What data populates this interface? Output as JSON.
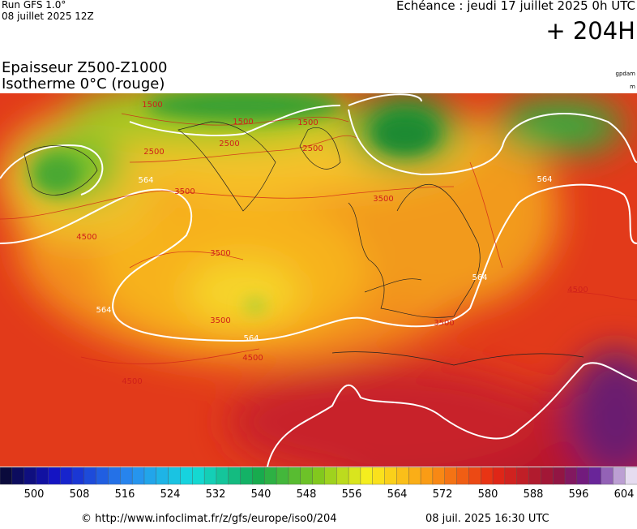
{
  "header": {
    "run": "Run GFS 1.0°",
    "date": "08 juillet 2025 12Z",
    "echeance": "Echéance : jeudi 17 juillet 2025 0h UTC",
    "horizon": "+ 204H"
  },
  "title": {
    "line1": "Epaisseur Z500-Z1000",
    "line2": "Isotherme 0°C (rouge)"
  },
  "units": {
    "gpdam": "gpdam",
    "m": "m"
  },
  "map": {
    "contour_labels": [
      "564",
      "564",
      "564",
      "564",
      "564",
      "1500",
      "1500",
      "1500",
      "2500",
      "2500",
      "2500",
      "3500",
      "3500",
      "3500",
      "3500",
      "3500",
      "4500",
      "4500",
      "4500",
      "4500"
    ]
  },
  "colorbar": {
    "labels": [
      500,
      508,
      516,
      524,
      532,
      540,
      548,
      556,
      564,
      572,
      580,
      588,
      596,
      604
    ]
  },
  "footer": {
    "url": "© http://www.infoclimat.fr/z/gfs/europe/iso0/204",
    "timestamp": "08 juil. 2025 16:30 UTC"
  }
}
